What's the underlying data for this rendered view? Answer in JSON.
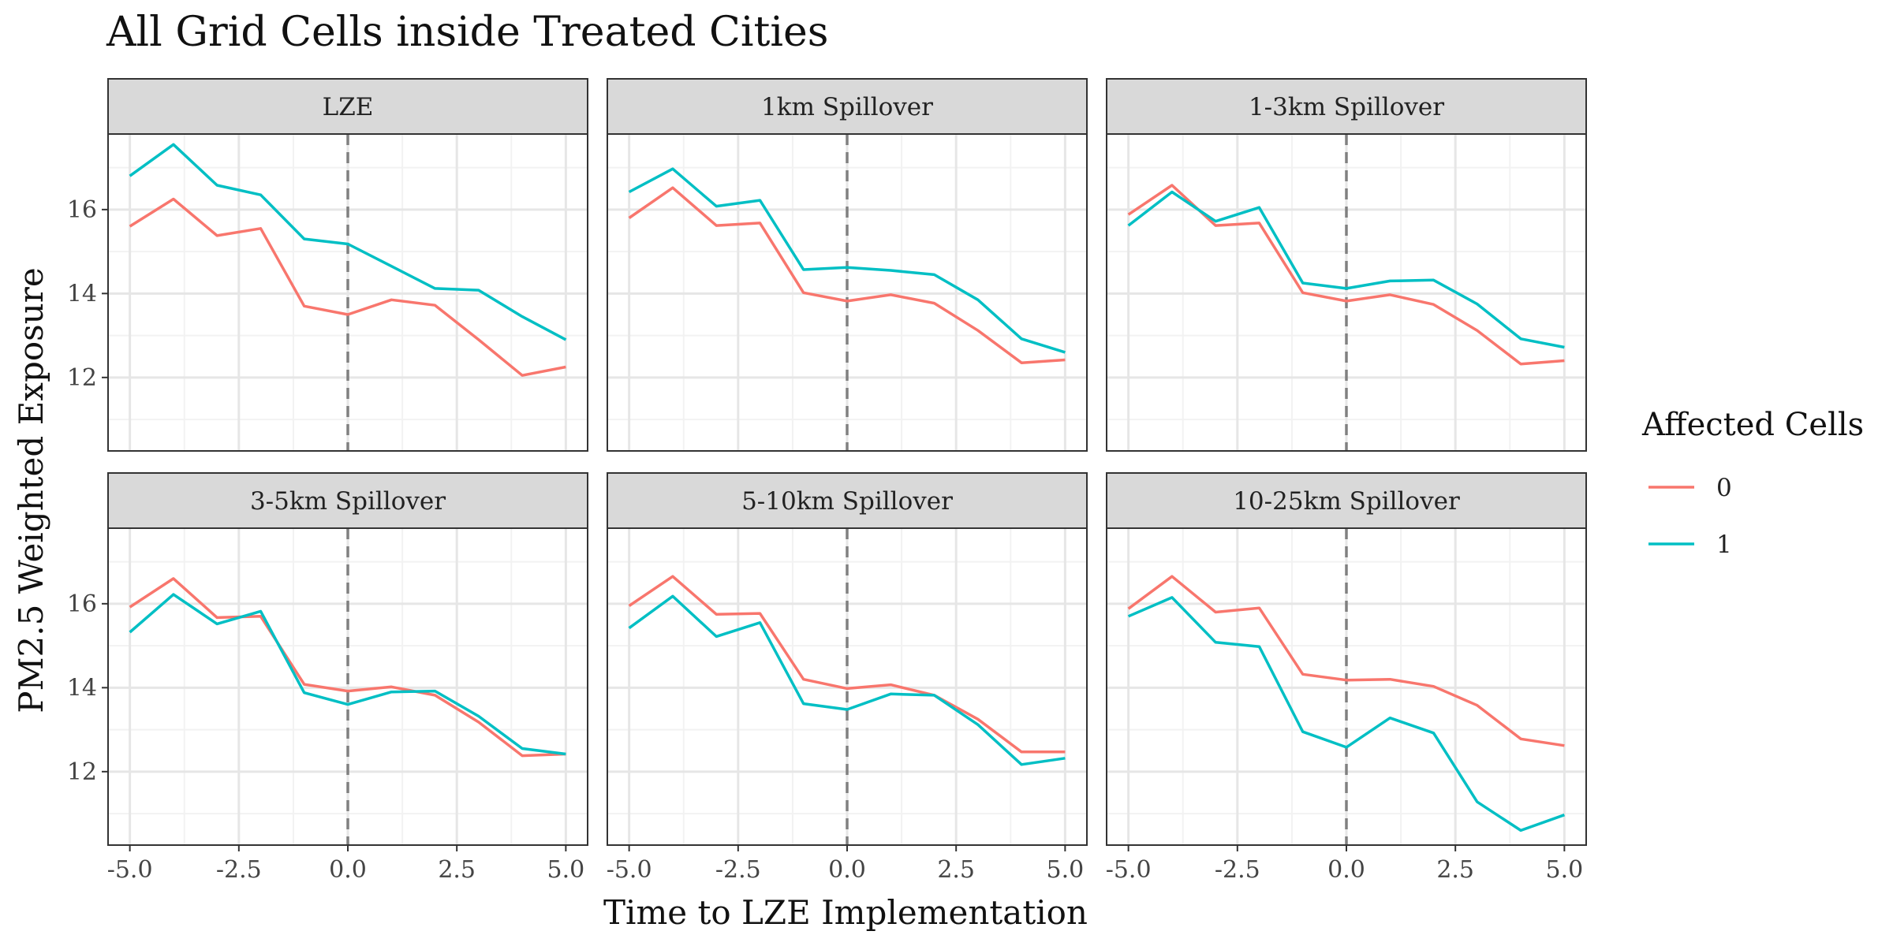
{
  "chart_data": {
    "type": "line",
    "title": "All Grid Cells inside Treated Cities",
    "xlabel": "Time to LZE Implementation",
    "ylabel": "PM2.5 Weighted Exposure",
    "xlim": [
      -5.5,
      5.5
    ],
    "ylim": [
      10.25,
      17.8
    ],
    "x_ticks": [
      -5,
      -2.5,
      0,
      2.5,
      5
    ],
    "x_tick_labels": [
      "-5.0",
      "-2.5",
      "0.0",
      "2.5",
      "5.0"
    ],
    "y_ticks": [
      12,
      14,
      16
    ],
    "y_tick_labels": [
      "12",
      "14",
      "16"
    ],
    "vline_x": 0,
    "grid": true,
    "legend": {
      "title": "Affected Cells",
      "placement": "right",
      "entries": [
        {
          "label": "0",
          "color": "#F8766D"
        },
        {
          "label": "1",
          "color": "#00BFC4"
        }
      ]
    },
    "x": [
      -5,
      -4,
      -3,
      -2,
      -1,
      0,
      1,
      2,
      3,
      4,
      5
    ],
    "panels": [
      {
        "title": "LZE",
        "series": [
          {
            "name": "0",
            "color": "#F8766D",
            "values": [
              15.6,
              16.25,
              15.38,
              15.55,
              13.7,
              13.5,
              13.85,
              13.72,
              12.9,
              12.05,
              12.25
            ]
          },
          {
            "name": "1",
            "color": "#00BFC4",
            "values": [
              16.8,
              17.55,
              16.58,
              16.35,
              15.3,
              15.18,
              14.65,
              14.12,
              14.08,
              13.45,
              12.9
            ]
          }
        ]
      },
      {
        "title": "1km Spillover",
        "series": [
          {
            "name": "0",
            "color": "#F8766D",
            "values": [
              15.8,
              16.52,
              15.62,
              15.68,
              14.02,
              13.82,
              13.97,
              13.77,
              13.12,
              12.35,
              12.42
            ]
          },
          {
            "name": "1",
            "color": "#00BFC4",
            "values": [
              16.42,
              16.97,
              16.08,
              16.22,
              14.57,
              14.62,
              14.55,
              14.45,
              13.85,
              12.92,
              12.6
            ]
          }
        ]
      },
      {
        "title": "1-3km Spillover",
        "series": [
          {
            "name": "0",
            "color": "#F8766D",
            "values": [
              15.88,
              16.58,
              15.62,
              15.68,
              14.02,
              13.82,
              13.97,
              13.74,
              13.12,
              12.32,
              12.4
            ]
          },
          {
            "name": "1",
            "color": "#00BFC4",
            "values": [
              15.62,
              16.42,
              15.72,
              16.05,
              14.25,
              14.12,
              14.3,
              14.32,
              13.75,
              12.92,
              12.72
            ]
          }
        ]
      },
      {
        "title": "3-5km Spillover",
        "series": [
          {
            "name": "0",
            "color": "#F8766D",
            "values": [
              15.92,
              16.6,
              15.67,
              15.7,
              14.08,
              13.92,
              14.02,
              13.82,
              13.18,
              12.38,
              12.42
            ]
          },
          {
            "name": "1",
            "color": "#00BFC4",
            "values": [
              15.32,
              16.22,
              15.52,
              15.82,
              13.88,
              13.6,
              13.9,
              13.92,
              13.32,
              12.55,
              12.42
            ]
          }
        ]
      },
      {
        "title": "5-10km Spillover",
        "series": [
          {
            "name": "0",
            "color": "#F8766D",
            "values": [
              15.95,
              16.65,
              15.75,
              15.77,
              14.2,
              13.98,
              14.07,
              13.82,
              13.25,
              12.47,
              12.47
            ]
          },
          {
            "name": "1",
            "color": "#00BFC4",
            "values": [
              15.42,
              16.18,
              15.22,
              15.55,
              13.62,
              13.48,
              13.85,
              13.82,
              13.12,
              12.17,
              12.32
            ]
          }
        ]
      },
      {
        "title": "10-25km Spillover",
        "series": [
          {
            "name": "0",
            "color": "#F8766D",
            "values": [
              15.88,
              16.65,
              15.8,
              15.9,
              14.32,
              14.18,
              14.2,
              14.03,
              13.58,
              12.78,
              12.62
            ]
          },
          {
            "name": "1",
            "color": "#00BFC4",
            "values": [
              15.7,
              16.15,
              15.08,
              14.98,
              12.95,
              12.58,
              13.28,
              12.92,
              11.28,
              10.6,
              10.97
            ]
          }
        ]
      }
    ]
  }
}
